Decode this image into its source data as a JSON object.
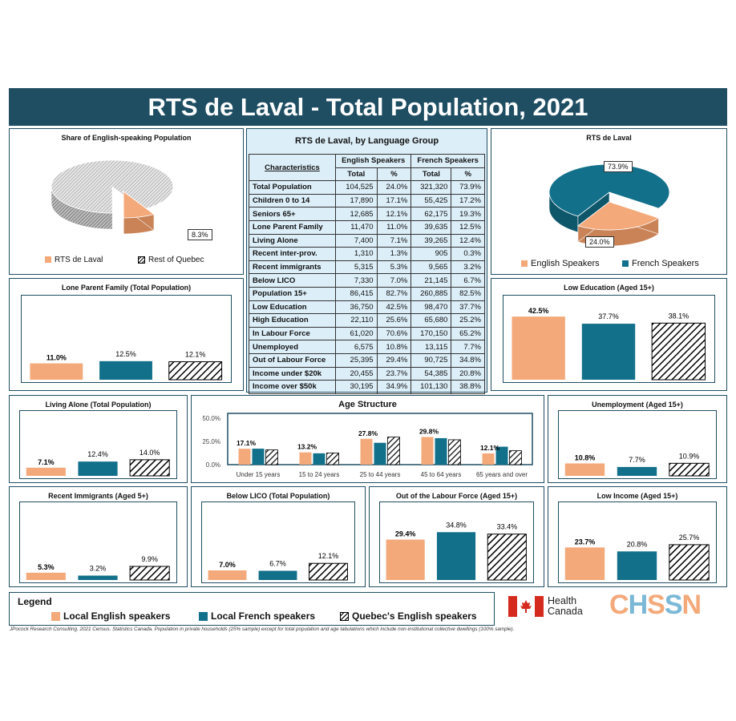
{
  "title": "RTS de Laval - Total Population, 2021",
  "colors": {
    "english": "#f4a97a",
    "french": "#13708a",
    "quebec": "hatch",
    "navy": "#1f4e63",
    "tableBg": "#dceef8"
  },
  "pie_left": {
    "title": "Share of English-speaking Population",
    "slice_label": "8.3%",
    "legend": [
      "RTS de Laval",
      "Rest of Quebec"
    ]
  },
  "pie_right": {
    "title": "RTS de Laval",
    "label_french": "73.9%",
    "label_english": "24.0%",
    "legend": [
      "English Speakers",
      "French Speakers"
    ]
  },
  "table": {
    "title": "RTS de Laval, by Language Group",
    "col_characteristics": "Characteristics",
    "group_english": "English Speakers",
    "group_french": "French Speakers",
    "col_total": "Total",
    "col_pct": "%",
    "rows": [
      {
        "label": "Total Population",
        "e_total": "104,525",
        "e_pct": "24.0%",
        "f_total": "321,320",
        "f_pct": "73.9%"
      },
      {
        "label": "Children 0 to 14",
        "e_total": "17,890",
        "e_pct": "17.1%",
        "f_total": "55,425",
        "f_pct": "17.2%"
      },
      {
        "label": "Seniors 65+",
        "e_total": "12,685",
        "e_pct": "12.1%",
        "f_total": "62,175",
        "f_pct": "19.3%"
      },
      {
        "label": "Lone Parent Family",
        "e_total": "11,470",
        "e_pct": "11.0%",
        "f_total": "39,635",
        "f_pct": "12.5%"
      },
      {
        "label": "Living Alone",
        "e_total": "7,400",
        "e_pct": "7.1%",
        "f_total": "39,265",
        "f_pct": "12.4%"
      },
      {
        "label": "Recent inter-prov.",
        "e_total": "1,310",
        "e_pct": "1.3%",
        "f_total": "905",
        "f_pct": "0.3%"
      },
      {
        "label": "Recent immigrants",
        "e_total": "5,315",
        "e_pct": "5.3%",
        "f_total": "9,565",
        "f_pct": "3.2%"
      },
      {
        "label": "Below LICO",
        "e_total": "7,330",
        "e_pct": "7.0%",
        "f_total": "21,145",
        "f_pct": "6.7%"
      },
      {
        "label": "Population 15+",
        "e_total": "86,415",
        "e_pct": "82.7%",
        "f_total": "260,885",
        "f_pct": "82.5%"
      },
      {
        "label": "Low Education",
        "e_total": "36,750",
        "e_pct": "42.5%",
        "f_total": "98,470",
        "f_pct": "37.7%"
      },
      {
        "label": "High Education",
        "e_total": "22,110",
        "e_pct": "25.6%",
        "f_total": "65,680",
        "f_pct": "25.2%"
      },
      {
        "label": "In Labour Force",
        "e_total": "61,020",
        "e_pct": "70.6%",
        "f_total": "170,150",
        "f_pct": "65.2%"
      },
      {
        "label": "Unemployed",
        "e_total": "6,575",
        "e_pct": "10.8%",
        "f_total": "13,115",
        "f_pct": "7.7%"
      },
      {
        "label": "Out of Labour Force",
        "e_total": "25,395",
        "e_pct": "29.4%",
        "f_total": "90,725",
        "f_pct": "34.8%"
      },
      {
        "label": "Income under $20k",
        "e_total": "20,455",
        "e_pct": "23.7%",
        "f_total": "54,385",
        "f_pct": "20.8%"
      },
      {
        "label": "Income over $50k",
        "e_total": "30,195",
        "e_pct": "34.9%",
        "f_total": "101,130",
        "f_pct": "38.8%"
      }
    ]
  },
  "legend": {
    "title": "Legend",
    "items": [
      "Local English speakers",
      "Local French speakers",
      "Quebec's English speakers"
    ]
  },
  "logos": {
    "health_canada_1": "Health",
    "health_canada_2": "Canada",
    "chssn": "CHSSN"
  },
  "footnote": "JPocock Research Consulting. 2021 Census. Statistics Canada. Population in private households (25% sample) except for total population and age tabulations which include non-institutional collective dwellings (100% sample).",
  "chart_data": [
    {
      "id": "share",
      "type": "pie",
      "title": "Share of English-speaking Population",
      "categories": [
        "RTS de Laval",
        "Rest of Quebec"
      ],
      "values": [
        8.3,
        91.7
      ],
      "data_labels": [
        "8.3%"
      ]
    },
    {
      "id": "rts",
      "type": "pie",
      "title": "RTS de Laval",
      "categories": [
        "English Speakers",
        "French Speakers"
      ],
      "values": [
        24.0,
        73.9
      ],
      "data_labels": [
        "24.0%",
        "73.9%"
      ]
    },
    {
      "id": "lone",
      "type": "bar",
      "title": "Lone Parent Family (Total Population)",
      "values": [
        11.0,
        12.5,
        12.1
      ],
      "labels": [
        "11.0%",
        "12.5%",
        "12.1%"
      ],
      "max": 45
    },
    {
      "id": "lowedu",
      "type": "bar",
      "title": "Low Education (Aged 15+)",
      "values": [
        42.5,
        37.7,
        38.1
      ],
      "labels": [
        "42.5%",
        "37.7%",
        "38.1%"
      ],
      "max": 45
    },
    {
      "id": "alone",
      "type": "bar",
      "title": "Living Alone (Total Population)",
      "values": [
        7.1,
        12.4,
        14.0
      ],
      "labels": [
        "7.1%",
        "12.4%",
        "14.0%"
      ],
      "max": 45
    },
    {
      "id": "unemp",
      "type": "bar",
      "title": "Unemployment (Aged 15+)",
      "values": [
        10.8,
        7.7,
        10.9
      ],
      "labels": [
        "10.8%",
        "7.7%",
        "10.9%"
      ],
      "max": 45
    },
    {
      "id": "immig",
      "type": "bar",
      "title": "Recent Immigrants (Aged 5+)",
      "values": [
        5.3,
        3.2,
        9.9
      ],
      "labels": [
        "5.3%",
        "3.2%",
        "9.9%"
      ],
      "max": 45
    },
    {
      "id": "lico",
      "type": "bar",
      "title": "Below LICO (Total Population)",
      "values": [
        7.0,
        6.7,
        12.1
      ],
      "labels": [
        "7.0%",
        "6.7%",
        "12.1%"
      ],
      "max": 45
    },
    {
      "id": "olf",
      "type": "bar",
      "title": "Out of the Labour Force (Aged 15+)",
      "values": [
        29.4,
        34.8,
        33.4
      ],
      "labels": [
        "29.4%",
        "34.8%",
        "33.4%"
      ],
      "max": 45
    },
    {
      "id": "lowinc",
      "type": "bar",
      "title": "Low Income (Aged 15+)",
      "values": [
        23.7,
        20.8,
        25.7
      ],
      "labels": [
        "23.7%",
        "20.8%",
        "25.7%"
      ],
      "max": 45
    },
    {
      "id": "age",
      "type": "bar",
      "title": "Age Structure",
      "categories": [
        "Under 15 years",
        "15 to 24 years",
        "25 to 44 years",
        "45 to 64 years",
        "65 years and over"
      ],
      "series": [
        {
          "values": [
            17.1,
            13.2,
            27.8,
            29.8,
            12.1
          ]
        },
        {
          "values": [
            17.2,
            12.2,
            23.5,
            28.5,
            19.3
          ]
        },
        {
          "values": [
            15.9,
            12.6,
            29.7,
            26.8,
            15.0
          ]
        }
      ],
      "data_labels": [
        "17.1%",
        "13.2%",
        "27.8%",
        "29.8%",
        "12.1%"
      ],
      "ylim": [
        0,
        50
      ],
      "yticks": [
        "50.0%",
        "25.0%",
        "0.0%"
      ]
    }
  ]
}
